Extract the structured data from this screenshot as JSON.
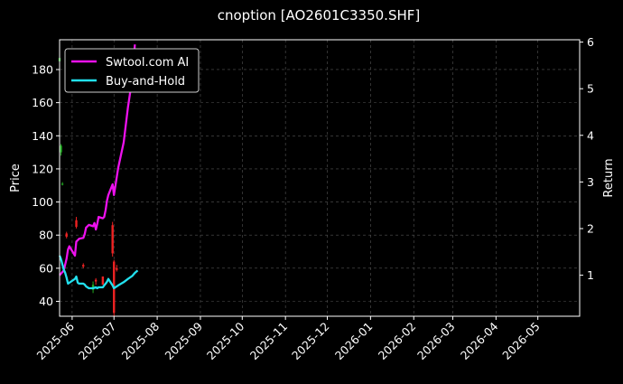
{
  "chart_data": {
    "type": "line",
    "title": "cnoption [AO2601C3350.SHF]",
    "xlabel": "",
    "ylabel": "Price",
    "y2label": "Return",
    "ylim": [
      31,
      198
    ],
    "y2lim": [
      0.12,
      6.05
    ],
    "xlim": [
      "2025-05-23",
      "2026-05-31"
    ],
    "x_ticks": [
      "2025-06",
      "2025-07",
      "2025-08",
      "2025-09",
      "2025-10",
      "2025-11",
      "2025-12",
      "2026-01",
      "2026-02",
      "2026-03",
      "2026-04",
      "2026-05"
    ],
    "y_ticks": [
      40,
      60,
      80,
      100,
      120,
      140,
      160,
      180
    ],
    "y2_ticks": [
      1,
      2,
      3,
      4,
      5,
      6
    ],
    "grid": true,
    "legend_position": "top-left",
    "series": [
      {
        "name": "Swtool.com AI",
        "color": "#ee11ee",
        "axis": "right",
        "x": [
          "2025-05-23",
          "2025-05-26",
          "2025-05-28",
          "2025-05-29",
          "2025-05-30",
          "2025-06-03",
          "2025-06-04",
          "2025-06-05",
          "2025-06-06",
          "2025-06-09",
          "2025-06-10",
          "2025-06-11",
          "2025-06-12",
          "2025-06-13",
          "2025-06-16",
          "2025-06-17",
          "2025-06-18",
          "2025-06-19",
          "2025-06-20",
          "2025-06-23",
          "2025-06-24",
          "2025-06-25",
          "2025-06-26",
          "2025-06-27",
          "2025-06-30",
          "2025-07-01",
          "2025-07-04",
          "2025-07-08",
          "2025-07-11",
          "2025-07-14",
          "2025-07-16"
        ],
        "values": [
          1.0,
          1.1,
          1.35,
          1.55,
          1.62,
          1.42,
          1.72,
          1.75,
          1.78,
          1.8,
          1.88,
          2.02,
          2.05,
          2.08,
          2.05,
          2.12,
          1.98,
          2.1,
          2.25,
          2.22,
          2.25,
          2.4,
          2.6,
          2.72,
          2.95,
          2.72,
          3.3,
          3.85,
          4.6,
          5.2,
          5.95
        ]
      },
      {
        "name": "Buy-and-Hold",
        "color": "#22e0ee",
        "axis": "right",
        "x": [
          "2025-05-23",
          "2025-05-24",
          "2025-05-26",
          "2025-05-27",
          "2025-05-28",
          "2025-05-29",
          "2025-06-03",
          "2025-06-04",
          "2025-06-05",
          "2025-06-06",
          "2025-06-09",
          "2025-06-10",
          "2025-06-11",
          "2025-06-12",
          "2025-06-13",
          "2025-06-16",
          "2025-06-17",
          "2025-06-18",
          "2025-06-19",
          "2025-06-20",
          "2025-06-23",
          "2025-06-24",
          "2025-06-25",
          "2025-06-26",
          "2025-06-27",
          "2025-06-30",
          "2025-07-01",
          "2025-07-04",
          "2025-07-08",
          "2025-07-11",
          "2025-07-14",
          "2025-07-16",
          "2025-07-18"
        ],
        "values": [
          1.42,
          1.35,
          1.12,
          1.05,
          0.95,
          0.82,
          0.92,
          0.97,
          0.84,
          0.82,
          0.82,
          0.8,
          0.76,
          0.74,
          0.72,
          0.72,
          0.73,
          0.74,
          0.72,
          0.74,
          0.74,
          0.78,
          0.82,
          0.86,
          0.92,
          0.78,
          0.72,
          0.78,
          0.85,
          0.92,
          0.98,
          1.05,
          1.1
        ]
      }
    ],
    "candles": [
      {
        "x": "2025-05-23",
        "open": 185,
        "high": 188,
        "low": 183,
        "close": 187
      },
      {
        "x": "2025-05-24",
        "open": 130,
        "high": 135,
        "low": 128,
        "close": 134
      },
      {
        "x": "2025-05-25",
        "open": 111,
        "high": 112,
        "low": 110,
        "close": 111
      },
      {
        "x": "2025-05-28",
        "open": 81,
        "high": 82,
        "low": 78,
        "close": 79
      },
      {
        "x": "2025-06-04",
        "open": 89,
        "high": 91,
        "low": 84,
        "close": 85
      },
      {
        "x": "2025-06-09",
        "open": 62,
        "high": 63,
        "low": 60,
        "close": 61
      },
      {
        "x": "2025-06-16",
        "open": 47,
        "high": 52,
        "low": 45,
        "close": 50
      },
      {
        "x": "2025-06-18",
        "open": 53,
        "high": 54,
        "low": 50,
        "close": 52
      },
      {
        "x": "2025-06-23",
        "open": 55,
        "high": 55,
        "low": 50,
        "close": 50
      },
      {
        "x": "2025-06-30",
        "open": 86,
        "high": 88,
        "low": 67,
        "close": 69
      },
      {
        "x": "2025-07-01",
        "open": 64,
        "high": 65,
        "low": 31,
        "close": 33
      },
      {
        "x": "2025-07-03",
        "open": 60,
        "high": 62,
        "low": 58,
        "close": 59
      }
    ],
    "candle_colors": {
      "up": "#22aa22",
      "down": "#ee2222"
    }
  }
}
